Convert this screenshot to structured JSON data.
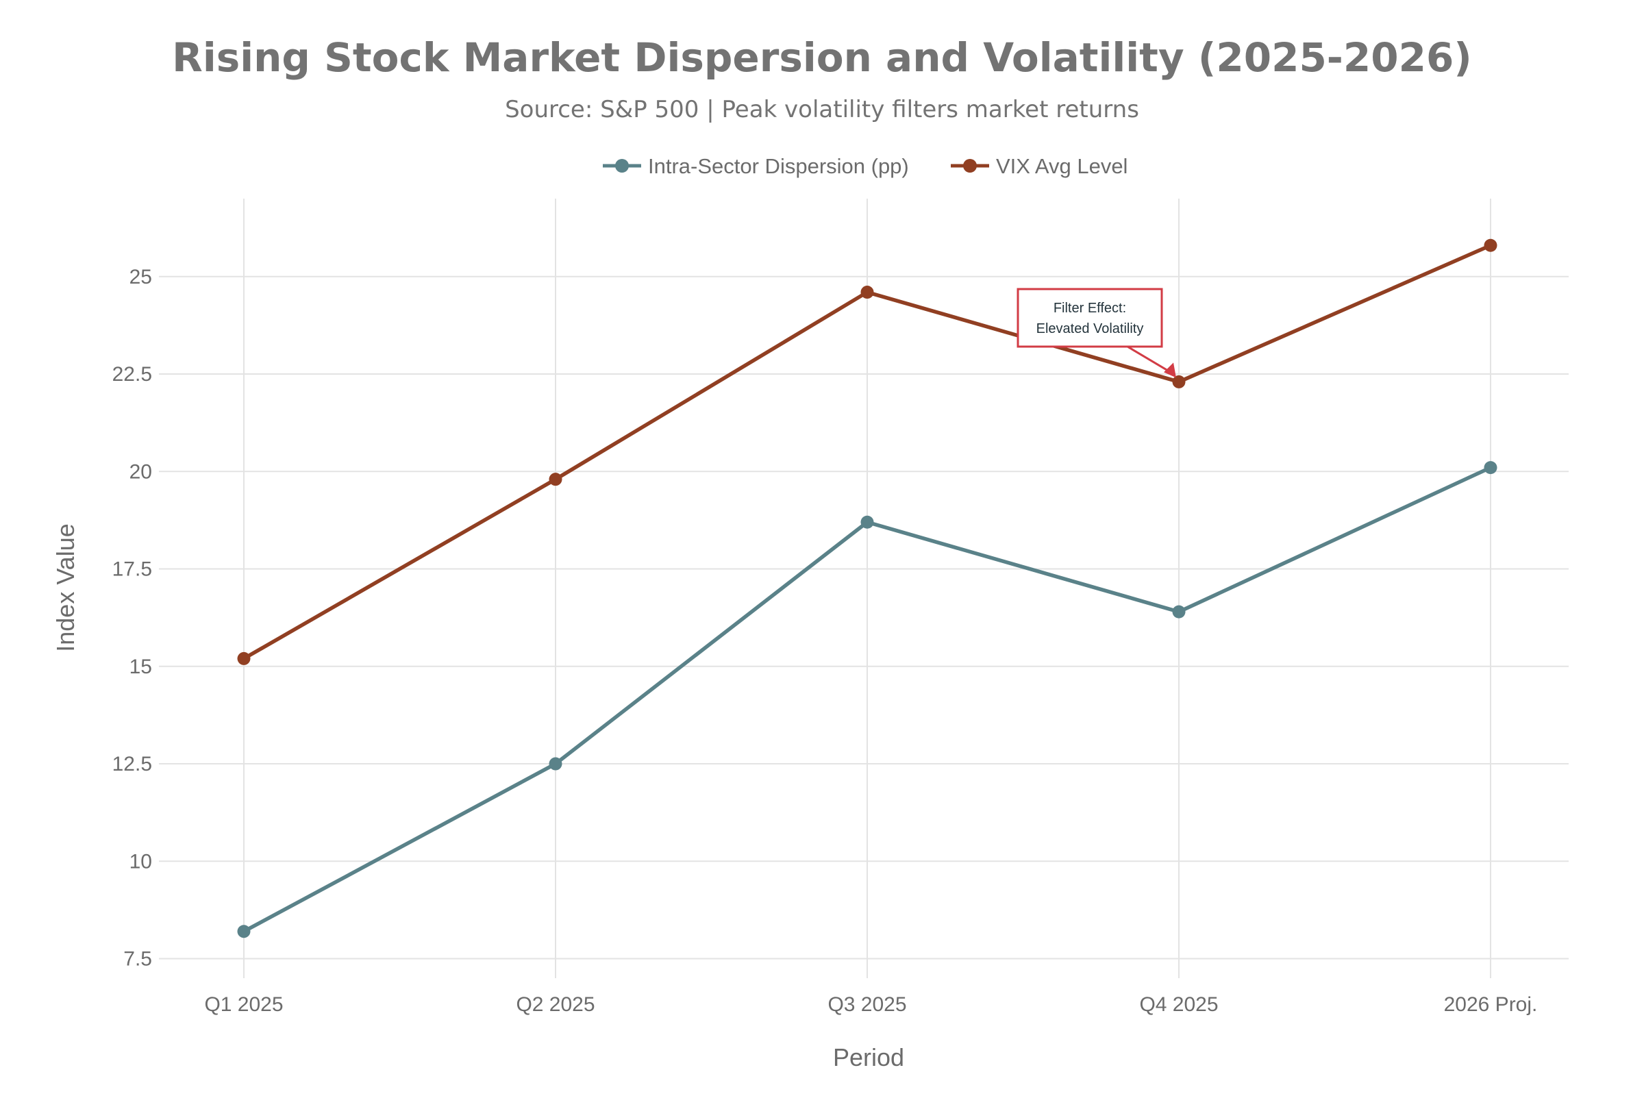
{
  "chart_data": {
    "type": "line",
    "title": "Rising Stock Market Dispersion and Volatility (2025-2026)",
    "subtitle": "Source: S&P 500 | Peak volatility filters market returns",
    "xlabel": "Period",
    "ylabel": "Index Value",
    "categories": [
      "Q1 2025",
      "Q2 2025",
      "Q3 2025",
      "Q4 2025",
      "2026 Proj."
    ],
    "ylim": [
      7,
      27
    ],
    "yticks": [
      7.5,
      10,
      12.5,
      15,
      17.5,
      20,
      22.5,
      25
    ],
    "ytick_labels": [
      "7.5",
      "10",
      "12.5",
      "15",
      "17.5",
      "20",
      "22.5",
      "25"
    ],
    "grid": true,
    "legend_position": "top-center",
    "series": [
      {
        "name": "Intra-Sector Dispersion (pp)",
        "values": [
          8.2,
          12.5,
          18.7,
          16.4,
          20.1
        ],
        "color": "#5a8289"
      },
      {
        "name": "VIX Avg Level",
        "values": [
          15.2,
          19.8,
          24.6,
          22.3,
          25.8
        ],
        "color": "#913f22"
      }
    ],
    "annotation": {
      "lines": [
        "Filter Effect:",
        "Elevated Volatility"
      ],
      "target_category": "Q4 2025",
      "target_value": 22.3,
      "color": "#d23c45"
    }
  }
}
